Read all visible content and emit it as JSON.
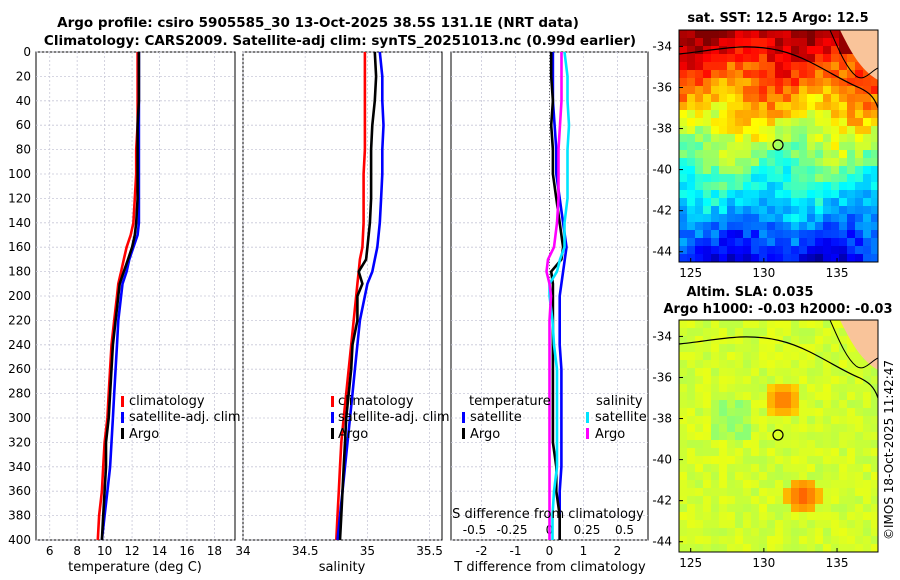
{
  "titles": {
    "line1": "Argo profile: csiro 5905585_30 13-Oct-2025 38.5S 131.1E (NRT data)",
    "line2": "Climatology: CARS2009. Satellite-adj clim: synTS_20251013.nc (0.99d earlier)"
  },
  "map_titles": {
    "sst": "sat. SST: 12.5 Argo: 12.5",
    "sla1": "Altim. SLA: 0.035",
    "sla2": "Argo h1000: -0.03 h2000: -0.03"
  },
  "credit": "©IMOS 18-Oct-2025 11:42:47",
  "colors": {
    "climatology": "#ff0000",
    "satellite": "#0000ff",
    "argo": "#000000",
    "s_satellite": "#00e5ff",
    "s_argo": "#ff00ff"
  },
  "chart_data": [
    {
      "type": "line",
      "name": "temperature",
      "xlabel": "temperature (deg C)",
      "ylabel": "",
      "xlim": [
        5,
        19.5
      ],
      "ylim": [
        400,
        0
      ],
      "xticks": [
        6,
        8,
        10,
        12,
        14,
        16,
        18
      ],
      "yticks": [
        0,
        20,
        40,
        60,
        80,
        100,
        120,
        140,
        160,
        180,
        200,
        220,
        240,
        260,
        280,
        300,
        320,
        340,
        360,
        380,
        400
      ],
      "depth": [
        0,
        20,
        40,
        60,
        80,
        100,
        120,
        140,
        150,
        160,
        170,
        180,
        190,
        200,
        210,
        220,
        240,
        260,
        280,
        300,
        320,
        340,
        360,
        380,
        400
      ],
      "series": [
        {
          "name": "climatology",
          "values": [
            12.4,
            12.4,
            12.4,
            12.4,
            12.3,
            12.3,
            12.2,
            12.1,
            11.9,
            11.6,
            11.4,
            11.2,
            11.0,
            10.9,
            10.8,
            10.7,
            10.5,
            10.4,
            10.3,
            10.2,
            10.0,
            9.9,
            9.8,
            9.6,
            9.5
          ]
        },
        {
          "name": "satellite-adj. clim",
          "values": [
            12.5,
            12.5,
            12.5,
            12.5,
            12.5,
            12.5,
            12.5,
            12.5,
            12.4,
            12.1,
            11.8,
            11.6,
            11.3,
            11.2,
            11.1,
            11.0,
            10.9,
            10.8,
            10.7,
            10.6,
            10.5,
            10.4,
            10.2,
            10.0,
            9.8
          ]
        },
        {
          "name": "Argo",
          "values": [
            12.5,
            12.5,
            12.5,
            12.4,
            12.4,
            12.4,
            12.4,
            12.3,
            12.2,
            12.0,
            11.7,
            11.4,
            11.1,
            11.0,
            10.9,
            10.8,
            10.6,
            10.5,
            10.4,
            10.3,
            10.1,
            10.1,
            10.0,
            9.9,
            9.8
          ]
        }
      ],
      "legend": [
        "climatology",
        "satellite-adj. clim",
        "Argo"
      ]
    },
    {
      "type": "line",
      "name": "salinity",
      "xlabel": "salinity",
      "ylabel": "",
      "xlim": [
        34.0,
        35.6
      ],
      "ylim": [
        400,
        0
      ],
      "xticks": [
        34,
        34.5,
        35,
        35.5
      ],
      "depth": [
        0,
        20,
        40,
        60,
        80,
        100,
        120,
        140,
        160,
        170,
        180,
        190,
        200,
        220,
        240,
        260,
        280,
        300,
        320,
        340,
        360,
        380,
        400
      ],
      "series": [
        {
          "name": "climatology",
          "values": [
            34.98,
            34.98,
            34.98,
            34.98,
            34.98,
            34.97,
            34.97,
            34.97,
            34.96,
            34.94,
            34.93,
            34.92,
            34.91,
            34.89,
            34.87,
            34.85,
            34.83,
            34.81,
            34.79,
            34.78,
            34.77,
            34.76,
            34.75
          ]
        },
        {
          "name": "satellite-adj. clim",
          "values": [
            35.1,
            35.12,
            35.12,
            35.13,
            35.12,
            35.12,
            35.11,
            35.1,
            35.08,
            35.06,
            35.04,
            35.0,
            34.98,
            34.94,
            34.92,
            34.9,
            34.88,
            34.86,
            34.84,
            34.82,
            34.8,
            34.78,
            34.76
          ]
        },
        {
          "name": "Argo",
          "values": [
            35.06,
            35.07,
            35.06,
            35.04,
            35.03,
            35.03,
            35.03,
            35.02,
            35.0,
            34.99,
            34.93,
            34.96,
            34.92,
            34.92,
            34.88,
            34.87,
            34.85,
            34.83,
            34.82,
            34.81,
            34.8,
            34.79,
            34.78
          ]
        }
      ],
      "legend": [
        "climatology",
        "satellite-adj. clim",
        "Argo"
      ]
    },
    {
      "type": "line",
      "name": "difference from climatology",
      "xlabel": "T difference from climatology",
      "xlabel_top": "S difference from climatology",
      "xlim": [
        -2.9,
        2.9
      ],
      "ylim": [
        400,
        0
      ],
      "xticks": [
        -2,
        -1,
        0,
        1,
        2
      ],
      "xticks_top": [
        "-0.5",
        "-0.25",
        "0",
        "0.25",
        "0.5"
      ],
      "depth": [
        0,
        20,
        40,
        60,
        80,
        100,
        120,
        140,
        160,
        170,
        180,
        190,
        200,
        220,
        240,
        260,
        280,
        300,
        320,
        340,
        360,
        380,
        400
      ],
      "series": [
        {
          "name": "temperature satellite",
          "values": [
            0.1,
            0.1,
            0.1,
            0.15,
            0.2,
            0.2,
            0.3,
            0.4,
            0.5,
            0.45,
            0.4,
            0.35,
            0.3,
            0.3,
            0.3,
            0.35,
            0.35,
            0.35,
            0.35,
            0.35,
            0.3,
            0.3,
            0.3
          ]
        },
        {
          "name": "temperature Argo",
          "values": [
            0.05,
            0.05,
            0.1,
            0.05,
            0.1,
            0.1,
            0.2,
            0.3,
            0.4,
            0.35,
            0.05,
            0.1,
            0.1,
            0.1,
            0.1,
            0.1,
            0.1,
            0.1,
            0.1,
            0.2,
            0.2,
            0.3,
            0.3
          ]
        },
        {
          "name": "salinity satellite",
          "values": [
            0.1,
            0.12,
            0.12,
            0.13,
            0.12,
            0.12,
            0.12,
            0.1,
            0.1,
            0.07,
            0.05,
            0.0,
            0.0,
            0.02,
            0.03,
            0.05,
            0.05,
            0.05,
            0.05,
            0.05,
            0.03,
            0.02,
            0.02
          ]
        },
        {
          "name": "salinity Argo",
          "values": [
            0.08,
            0.08,
            0.08,
            0.07,
            0.06,
            0.06,
            0.06,
            0.05,
            0.03,
            -0.01,
            -0.02,
            0.0,
            0.01,
            0.0,
            0.0,
            0.0,
            0.0,
            0.0,
            0.0,
            0.0,
            0.0,
            0.0,
            0.0
          ]
        }
      ],
      "legend_groups": {
        "temperature": "temperature",
        "salinity": "salinity",
        "entries": [
          "satellite",
          "Argo"
        ]
      }
    },
    {
      "type": "heatmap",
      "name": "satellite SST map",
      "title": "sat. SST: 12.5 Argo: 12.5",
      "xticks": [
        125,
        130,
        135
      ],
      "yticks": [
        -34,
        -36,
        -38,
        -40,
        -42,
        -44
      ],
      "xlim": [
        124.2,
        137.8
      ],
      "ylim": [
        -44.5,
        -33.2
      ],
      "argo_position": {
        "lon": 131.1,
        "lat": -38.5
      }
    },
    {
      "type": "heatmap",
      "name": "altimetry SLA map",
      "title": "Altim. SLA: 0.035",
      "xticks": [
        125,
        130,
        135
      ],
      "yticks": [
        -34,
        -36,
        -38,
        -40,
        -42,
        -44
      ],
      "xlim": [
        124.2,
        137.8
      ],
      "ylim": [
        -44.5,
        -33.2
      ],
      "argo_position": {
        "lon": 131.1,
        "lat": -38.5
      }
    }
  ]
}
